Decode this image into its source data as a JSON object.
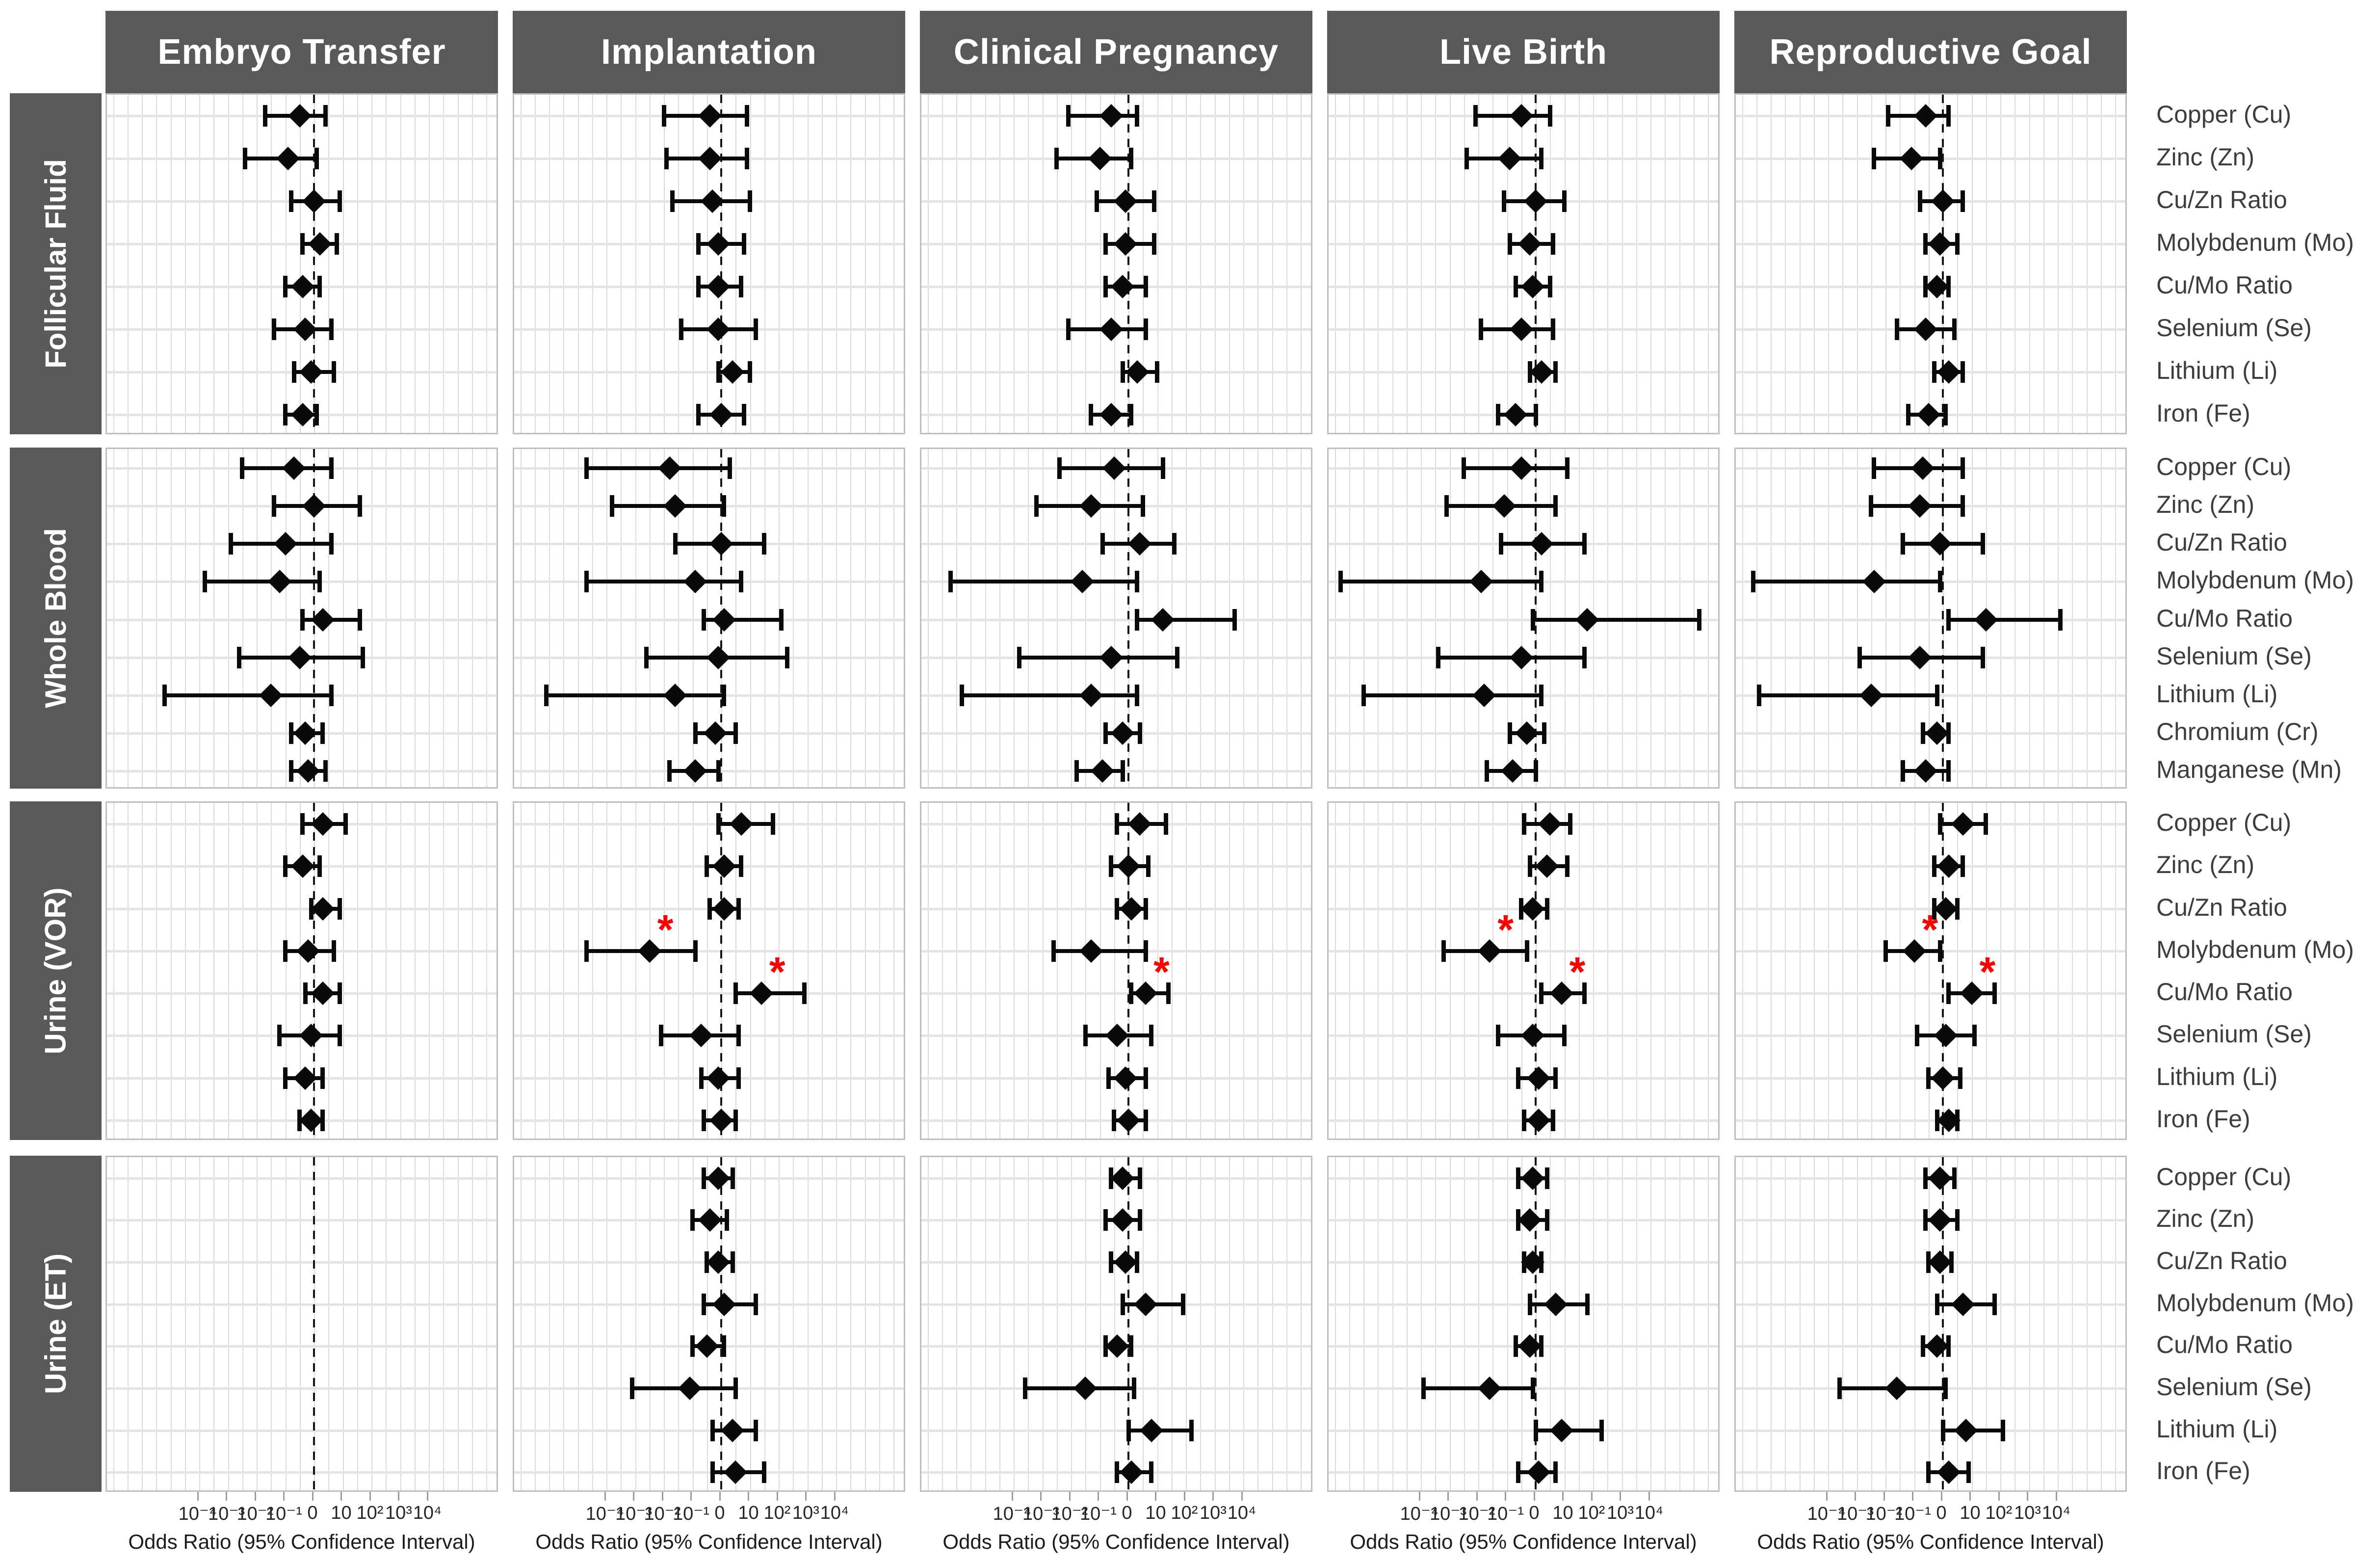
{
  "colors": {
    "band_header": "#595959",
    "header_text": "#ffffff",
    "point": "#0a0a0a",
    "significance": "#ff0000",
    "gridline": "#dadada"
  },
  "chart_data": {
    "type": "scatter",
    "subtype": "forest-plot-grid",
    "title": "",
    "xlabel": "Odds Ratio (95% Confidence Interval)",
    "xscale": "log10",
    "note_units": "each data triple is [lower CI, point estimate, upper CI] expressed as log10(odds ratio); reference dashed line at OR = 1",
    "grid": "on",
    "x_ticks": [
      {
        "label": "10⁻⁴",
        "log10": -4
      },
      {
        "label": "10⁻³",
        "log10": -3
      },
      {
        "label": "10⁻²",
        "log10": -2
      },
      {
        "label": "10⁻¹",
        "log10": -1
      },
      {
        "label": "0",
        "log10": 0
      },
      {
        "label": "10",
        "log10": 1
      },
      {
        "label": "10²",
        "log10": 2
      },
      {
        "label": "10³",
        "log10": 3
      },
      {
        "label": "10⁴",
        "log10": 4
      }
    ],
    "outcomes": [
      "Embryo Transfer",
      "Implantation",
      "Clinical Pregnancy",
      "Live Birth",
      "Reproductive Goal"
    ],
    "groups": [
      {
        "name": "Follicular Fluid",
        "elements": [
          "Copper (Cu)",
          "Zinc (Zn)",
          "Cu/Zn Ratio",
          "Molybdenum (Mo)",
          "Cu/Mo Ratio",
          "Selenium (Se)",
          "Lithium (Li)",
          "Iron (Fe)"
        ],
        "data": [
          [
            [
              -1.7,
              -0.5,
              0.4
            ],
            [
              -2.4,
              -0.9,
              0.1
            ],
            [
              -0.8,
              0,
              0.9
            ],
            [
              -0.4,
              0.2,
              0.8
            ],
            [
              -1,
              -0.4,
              0.2
            ],
            [
              -1.4,
              -0.3,
              0.6
            ],
            [
              -0.7,
              -0.1,
              0.7
            ],
            [
              -1,
              -0.4,
              0.1
            ]
          ],
          [
            [
              -2,
              -0.4,
              0.9
            ],
            [
              -1.9,
              -0.4,
              0.9
            ],
            [
              -1.7,
              -0.3,
              1
            ],
            [
              -0.8,
              -0.1,
              0.8
            ],
            [
              -0.8,
              -0.1,
              0.7
            ],
            [
              -1.4,
              -0.1,
              1.2
            ],
            [
              -0.1,
              0.4,
              1
            ],
            [
              -0.8,
              0,
              0.8
            ]
          ],
          [
            [
              -2.1,
              -0.6,
              0.3
            ],
            [
              -2.5,
              -1,
              0.1
            ],
            [
              -1.1,
              -0.1,
              0.9
            ],
            [
              -0.8,
              -0.1,
              0.9
            ],
            [
              -0.8,
              -0.2,
              0.6
            ],
            [
              -2.1,
              -0.6,
              0.6
            ],
            [
              -0.2,
              0.3,
              1
            ],
            [
              -1.3,
              -0.6,
              0.1
            ]
          ],
          [
            [
              -2.1,
              -0.5,
              0.5
            ],
            [
              -2.4,
              -0.9,
              0.2
            ],
            [
              -1.1,
              0,
              1
            ],
            [
              -0.9,
              -0.2,
              0.6
            ],
            [
              -0.7,
              -0.1,
              0.5
            ],
            [
              -1.9,
              -0.5,
              0.6
            ],
            [
              -0.2,
              0.2,
              0.7
            ],
            [
              -1.3,
              -0.7,
              0
            ]
          ],
          [
            [
              -1.9,
              -0.6,
              0.2
            ],
            [
              -2.4,
              -1.1,
              -0.1
            ],
            [
              -0.8,
              0,
              0.7
            ],
            [
              -0.6,
              -0.1,
              0.5
            ],
            [
              -0.6,
              -0.2,
              0.2
            ],
            [
              -1.6,
              -0.6,
              0.4
            ],
            [
              -0.3,
              0.2,
              0.7
            ],
            [
              -1.2,
              -0.5,
              0.1
            ]
          ]
        ],
        "significant": {}
      },
      {
        "name": "Whole Blood",
        "elements": [
          "Copper (Cu)",
          "Zinc (Zn)",
          "Cu/Zn Ratio",
          "Molybdenum (Mo)",
          "Cu/Mo Ratio",
          "Selenium (Se)",
          "Lithium (Li)",
          "Chromium (Cr)",
          "Manganese (Mn)"
        ],
        "data": [
          [
            [
              -2.5,
              -0.7,
              0.6
            ],
            [
              -1.4,
              0,
              1.6
            ],
            [
              -2.9,
              -1,
              0.6
            ],
            [
              -3.8,
              -1.2,
              0.2
            ],
            [
              -0.4,
              0.3,
              1.6
            ],
            [
              -2.6,
              -0.5,
              1.7
            ],
            [
              -5.2,
              -1.5,
              0.6
            ],
            [
              -0.8,
              -0.3,
              0.3
            ],
            [
              -0.8,
              -0.2,
              0.4
            ]
          ],
          [
            [
              -4.7,
              -1.8,
              0.3
            ],
            [
              -3.8,
              -1.6,
              0.1
            ],
            [
              -1.6,
              0,
              1.5
            ],
            [
              -4.7,
              -0.9,
              0.7
            ],
            [
              -0.6,
              0.1,
              2.1
            ],
            [
              -2.6,
              -0.1,
              2.3
            ],
            [
              -6.1,
              -1.6,
              0.1
            ],
            [
              -0.9,
              -0.2,
              0.5
            ],
            [
              -1.8,
              -0.9,
              -0.1
            ]
          ],
          [
            [
              -2.4,
              -0.5,
              1.2
            ],
            [
              -3.2,
              -1.3,
              0.5
            ],
            [
              -0.9,
              0.4,
              1.6
            ],
            [
              -6.2,
              -1.6,
              0.3
            ],
            [
              0.3,
              1.2,
              3.7
            ],
            [
              -3.8,
              -0.6,
              1.7
            ],
            [
              -5.8,
              -1.3,
              0.3
            ],
            [
              -0.8,
              -0.2,
              0.4
            ],
            [
              -1.8,
              -0.9,
              -0.2
            ]
          ],
          [
            [
              -2.5,
              -0.5,
              1.1
            ],
            [
              -3.1,
              -1.1,
              0.7
            ],
            [
              -1.2,
              0.2,
              1.7
            ],
            [
              -6.8,
              -1.9,
              0.2
            ],
            [
              -0.1,
              1.8,
              5.7
            ],
            [
              -3.4,
              -0.5,
              1.7
            ],
            [
              -6,
              -1.8,
              0.2
            ],
            [
              -0.9,
              -0.3,
              0.3
            ],
            [
              -1.7,
              -0.8,
              0
            ]
          ],
          [
            [
              -2.4,
              -0.7,
              0.7
            ],
            [
              -2.5,
              -0.8,
              0.7
            ],
            [
              -1.4,
              -0.1,
              1.4
            ],
            [
              -6.6,
              -2.4,
              -0.1
            ],
            [
              0.2,
              1.5,
              4.1
            ],
            [
              -2.9,
              -0.8,
              1.4
            ],
            [
              -6.4,
              -2.5,
              -0.2
            ],
            [
              -0.7,
              -0.2,
              0.2
            ],
            [
              -1.4,
              -0.6,
              0.2
            ]
          ]
        ],
        "significant": {}
      },
      {
        "name": "Urine (VOR)",
        "elements": [
          "Copper (Cu)",
          "Zinc (Zn)",
          "Cu/Zn Ratio",
          "Molybdenum (Mo)",
          "Cu/Mo Ratio",
          "Selenium (Se)",
          "Lithium (Li)",
          "Iron (Fe)"
        ],
        "data": [
          [
            [
              -0.4,
              0.3,
              1.1
            ],
            [
              -1,
              -0.4,
              0.2
            ],
            [
              -0.1,
              0.3,
              0.9
            ],
            [
              -1,
              -0.2,
              0.7
            ],
            [
              -0.3,
              0.3,
              0.9
            ],
            [
              -1.2,
              -0.1,
              0.9
            ],
            [
              -1,
              -0.3,
              0.3
            ],
            [
              -0.5,
              -0.1,
              0.3
            ]
          ],
          [
            [
              -0.1,
              0.7,
              1.8
            ],
            [
              -0.5,
              0.1,
              0.7
            ],
            [
              -0.4,
              0.1,
              0.6
            ],
            [
              -4.7,
              -2.5,
              -0.9
            ],
            [
              0.5,
              1.4,
              2.9
            ],
            [
              -2.1,
              -0.7,
              0.6
            ],
            [
              -0.7,
              -0.1,
              0.6
            ],
            [
              -0.6,
              0,
              0.5
            ]
          ],
          [
            [
              -0.4,
              0.4,
              1.3
            ],
            [
              -0.6,
              0,
              0.7
            ],
            [
              -0.4,
              0.1,
              0.6
            ],
            [
              -2.6,
              -1.3,
              0.6
            ],
            [
              0.1,
              0.6,
              1.4
            ],
            [
              -1.5,
              -0.4,
              0.8
            ],
            [
              -0.7,
              -0.1,
              0.6
            ],
            [
              -0.5,
              0,
              0.6
            ]
          ],
          [
            [
              -0.4,
              0.5,
              1.2
            ],
            [
              -0.2,
              0.4,
              1.1
            ],
            [
              -0.5,
              -0.1,
              0.4
            ],
            [
              -3.2,
              -1.6,
              -0.3
            ],
            [
              0.2,
              0.9,
              1.7
            ],
            [
              -1.3,
              -0.1,
              1
            ],
            [
              -0.6,
              0.1,
              0.7
            ],
            [
              -0.4,
              0.1,
              0.6
            ]
          ],
          [
            [
              -0.1,
              0.7,
              1.5
            ],
            [
              -0.3,
              0.2,
              0.7
            ],
            [
              -0.3,
              0.1,
              0.5
            ],
            [
              -2,
              -1,
              -0.1
            ],
            [
              0.2,
              1,
              1.8
            ],
            [
              -0.9,
              0.1,
              1.1
            ],
            [
              -0.5,
              0,
              0.6
            ],
            [
              -0.2,
              0.2,
              0.5
            ]
          ]
        ],
        "significant": {
          "1": [
            3,
            4
          ],
          "2": [
            4
          ],
          "3": [
            3,
            4
          ],
          "4": [
            3,
            4
          ]
        }
      },
      {
        "name": "Urine (ET)",
        "elements": [
          "Copper (Cu)",
          "Zinc (Zn)",
          "Cu/Zn Ratio",
          "Molybdenum (Mo)",
          "Cu/Mo Ratio",
          "Selenium (Se)",
          "Lithium (Li)",
          "Iron (Fe)"
        ],
        "data": [
          null,
          [
            [
              -0.6,
              -0.1,
              0.4
            ],
            [
              -1,
              -0.4,
              0.2
            ],
            [
              -0.5,
              -0.1,
              0.4
            ],
            [
              -0.6,
              0.1,
              1.2
            ],
            [
              -1,
              -0.5,
              0.1
            ],
            [
              -3.1,
              -1.1,
              0.5
            ],
            [
              -0.3,
              0.4,
              1.2
            ],
            [
              -0.3,
              0.5,
              1.5
            ]
          ],
          [
            [
              -0.6,
              -0.2,
              0.4
            ],
            [
              -0.8,
              -0.2,
              0.4
            ],
            [
              -0.6,
              -0.1,
              0.3
            ],
            [
              -0.2,
              0.6,
              1.9
            ],
            [
              -0.8,
              -0.4,
              0.1
            ],
            [
              -3.6,
              -1.5,
              0.2
            ],
            [
              0,
              0.8,
              2.2
            ],
            [
              -0.4,
              0.1,
              0.8
            ]
          ],
          [
            [
              -0.6,
              -0.1,
              0.4
            ],
            [
              -0.6,
              -0.2,
              0.4
            ],
            [
              -0.4,
              -0.1,
              0.2
            ],
            [
              -0.2,
              0.7,
              1.8
            ],
            [
              -0.7,
              -0.2,
              0.2
            ],
            [
              -3.9,
              -1.6,
              -0.1
            ],
            [
              0,
              0.9,
              2.3
            ],
            [
              -0.6,
              0.1,
              0.7
            ]
          ],
          [
            [
              -0.6,
              -0.1,
              0.4
            ],
            [
              -0.6,
              -0.1,
              0.5
            ],
            [
              -0.5,
              -0.1,
              0.3
            ],
            [
              -0.2,
              0.7,
              1.8
            ],
            [
              -0.7,
              -0.2,
              0.2
            ],
            [
              -3.6,
              -1.6,
              0.1
            ],
            [
              0,
              0.8,
              2.1
            ],
            [
              -0.5,
              0.2,
              0.9
            ]
          ]
        ],
        "significant": {}
      }
    ]
  }
}
